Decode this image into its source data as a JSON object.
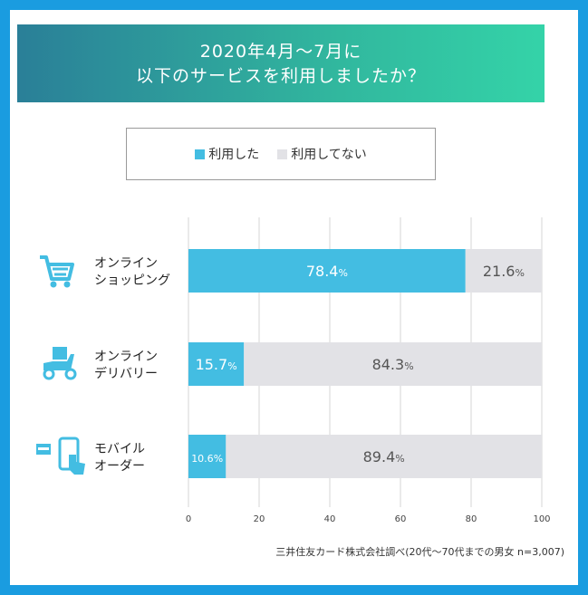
{
  "title": {
    "line1": "2020年4月〜7月に",
    "line2": "以下のサービスを利用しましたか？"
  },
  "legend": {
    "used": "利用した",
    "not_used": "利用してない"
  },
  "colors": {
    "used": "#43bde2",
    "not_used": "#e2e2e6",
    "frame": "#1a9ce0"
  },
  "source": "三井住友カード株式会社調べ(20代〜70代までの男女  n=3,007)",
  "chart_data": {
    "type": "bar",
    "orientation": "horizontal",
    "stacked": true,
    "categories": [
      {
        "lines": [
          "オンライン",
          "ショッピング"
        ],
        "icon": "shopping-cart-icon"
      },
      {
        "lines": [
          "オンライン",
          "デリバリー"
        ],
        "icon": "delivery-scooter-icon"
      },
      {
        "lines": [
          "モバイル",
          "オーダー"
        ],
        "icon": "mobile-order-icon"
      }
    ],
    "series": [
      {
        "name": "利用した",
        "values": [
          78.4,
          15.7,
          10.6
        ],
        "labels": [
          "78.4",
          "15.7",
          "10.6"
        ]
      },
      {
        "name": "利用してない",
        "values": [
          21.6,
          84.3,
          89.4
        ],
        "labels": [
          "21.6",
          "84.3",
          "89.4"
        ]
      }
    ],
    "unit": "%",
    "xlim": [
      0,
      100
    ],
    "xticks": [
      "0",
      "20",
      "40",
      "60",
      "80",
      "100"
    ],
    "grid": true,
    "legend_position": "top"
  }
}
